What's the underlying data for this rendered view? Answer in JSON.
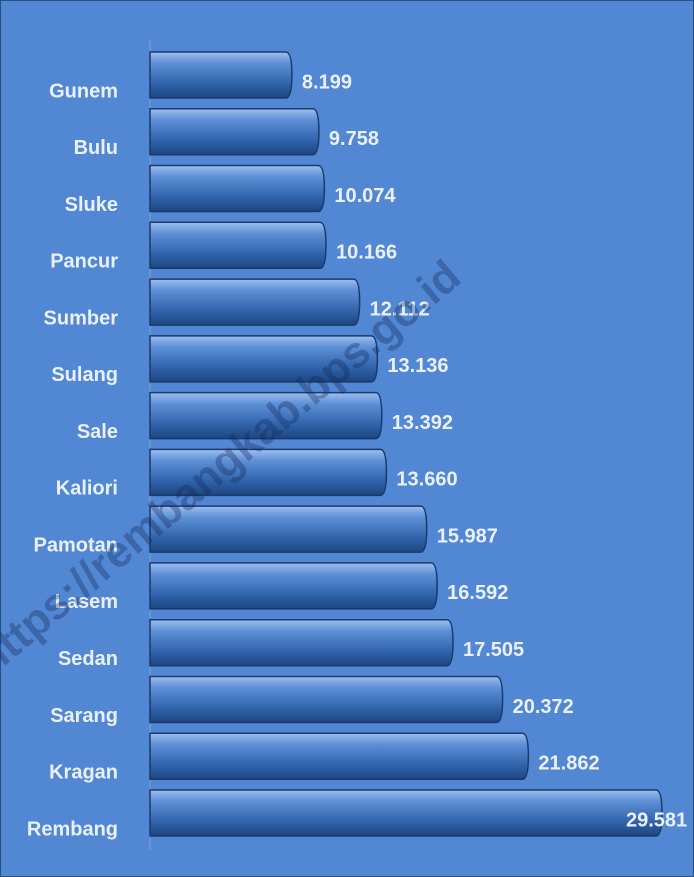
{
  "chart_data": {
    "type": "bar",
    "orientation": "horizontal",
    "categories": [
      "Gunem",
      "Bulu",
      "Sluke",
      "Pancur",
      "Sumber",
      "Sulang",
      "Sale",
      "Kaliori",
      "Pamotan",
      "Lasem",
      "Sedan",
      "Sarang",
      "Kragan",
      "Rembang"
    ],
    "values": [
      8.199,
      9.758,
      10.074,
      10.166,
      12.112,
      13.136,
      13.392,
      13.66,
      15.987,
      16.592,
      17.505,
      20.372,
      21.862,
      29.581
    ],
    "value_labels": [
      "8.199",
      "9.758",
      "10.074",
      "10.166",
      "12.112",
      "13.136",
      "13.392",
      "13.660",
      "15.987",
      "16.592",
      "17.505",
      "20.372",
      "21.862",
      "29.581"
    ],
    "color": "#3366b0",
    "watermark": "https://rembangkab.bps.go.id"
  }
}
